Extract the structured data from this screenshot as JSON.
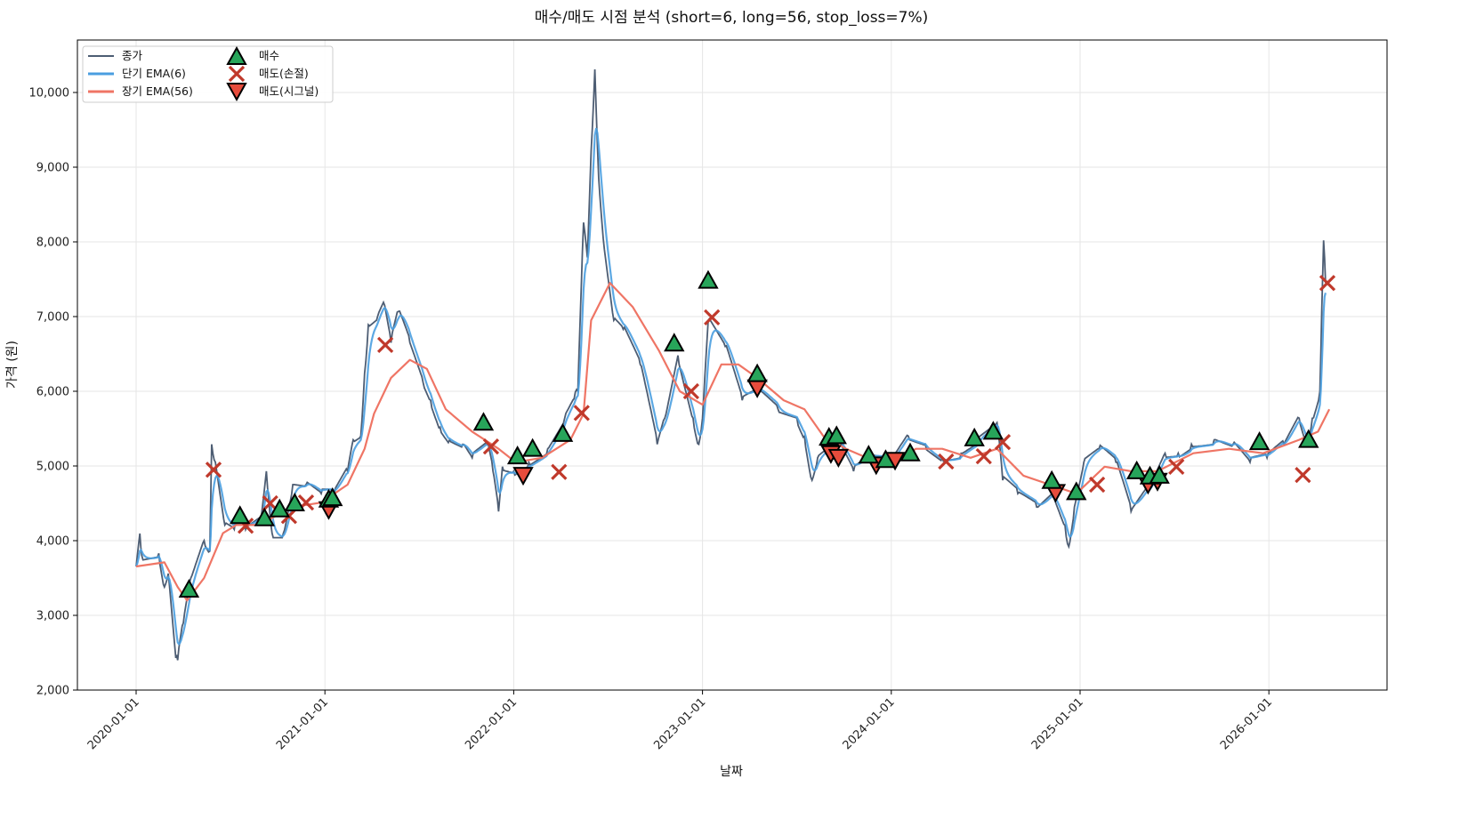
{
  "chart_data": {
    "type": "line",
    "title": "매수/매도 시점 분석 (short=6, long=56, stop_loss=7%)",
    "xlabel": "날짜",
    "ylabel": "가격 (원)",
    "ylim": [
      2000,
      10700
    ],
    "xlim": [
      2019.69,
      2026.63
    ],
    "grid": true,
    "legend_position": "top-left",
    "yticks": [
      2000,
      3000,
      4000,
      5000,
      6000,
      7000,
      8000,
      9000,
      10000
    ],
    "ytick_labels": [
      "2,000",
      "3,000",
      "4,000",
      "5,000",
      "6,000",
      "7,000",
      "8,000",
      "9,000",
      "10,000"
    ],
    "xticks": [
      2020,
      2021,
      2022,
      2023,
      2024,
      2025,
      2026
    ],
    "xtick_labels": [
      "2020-01-01",
      "2021-01-01",
      "2022-01-01",
      "2023-01-01",
      "2024-01-01",
      "2025-01-01",
      "2026-01-01"
    ],
    "legend": [
      "종가",
      "단기 EMA(6)",
      "장기 EMA(56)",
      "매수",
      "매도(손절)",
      "매도(시그널)"
    ],
    "colors": {
      "close": "#4d5d73",
      "short": "#4a9ee0",
      "long": "#ef7565",
      "buy": "#27a55a",
      "stop": "#c0392b",
      "signal": "#e74c3c"
    },
    "short_ema_period": 6,
    "close": [
      [
        2020.0,
        3655
      ],
      [
        2020.02,
        4095
      ],
      [
        2020.03,
        3800
      ],
      [
        2020.12,
        3830
      ],
      [
        2020.15,
        3380
      ],
      [
        2020.17,
        3560
      ],
      [
        2020.21,
        2430
      ],
      [
        2020.22,
        2400
      ],
      [
        2020.25,
        2900
      ],
      [
        2020.29,
        3500
      ],
      [
        2020.36,
        4000
      ],
      [
        2020.39,
        3860
      ],
      [
        2020.4,
        5290
      ],
      [
        2020.42,
        5050
      ],
      [
        2020.47,
        4210
      ],
      [
        2020.52,
        4150
      ],
      [
        2020.55,
        4390
      ],
      [
        2020.58,
        4150
      ],
      [
        2020.66,
        4270
      ],
      [
        2020.69,
        4930
      ],
      [
        2020.72,
        4100
      ],
      [
        2020.78,
        4100
      ],
      [
        2020.83,
        4750
      ],
      [
        2020.9,
        4750
      ],
      [
        2020.98,
        4630
      ],
      [
        2021.05,
        4630
      ],
      [
        2021.12,
        4930
      ],
      [
        2021.15,
        5350
      ],
      [
        2021.19,
        5400
      ],
      [
        2021.21,
        6240
      ],
      [
        2021.23,
        6890
      ],
      [
        2021.28,
        7010
      ],
      [
        2021.31,
        7190
      ],
      [
        2021.35,
        6650
      ],
      [
        2021.39,
        7070
      ],
      [
        2021.45,
        6650
      ],
      [
        2021.52,
        6120
      ],
      [
        2021.56,
        5880
      ],
      [
        2021.61,
        5520
      ],
      [
        2021.66,
        5350
      ],
      [
        2021.73,
        5290
      ],
      [
        2021.78,
        5110
      ],
      [
        2021.86,
        5290
      ],
      [
        2021.89,
        4930
      ],
      [
        2021.92,
        4390
      ],
      [
        2021.94,
        4990
      ],
      [
        2022.0,
        4930
      ],
      [
        2022.08,
        5050
      ],
      [
        2022.18,
        5230
      ],
      [
        2022.27,
        5640
      ],
      [
        2022.32,
        5900
      ],
      [
        2022.34,
        6000
      ],
      [
        2022.37,
        8260
      ],
      [
        2022.39,
        7790
      ],
      [
        2022.41,
        9210
      ],
      [
        2022.43,
        10310
      ],
      [
        2022.45,
        8860
      ],
      [
        2022.48,
        7900
      ],
      [
        2022.53,
        6950
      ],
      [
        2022.58,
        6830
      ],
      [
        2022.67,
        6360
      ],
      [
        2022.76,
        5290
      ],
      [
        2022.8,
        5640
      ],
      [
        2022.87,
        6480
      ],
      [
        2022.95,
        5640
      ],
      [
        2022.98,
        5290
      ],
      [
        2023.0,
        5640
      ],
      [
        2023.03,
        6950
      ],
      [
        2023.12,
        6600
      ],
      [
        2023.21,
        5880
      ],
      [
        2023.31,
        6000
      ],
      [
        2023.4,
        5760
      ],
      [
        2023.5,
        5640
      ],
      [
        2023.54,
        5400
      ],
      [
        2023.58,
        4810
      ],
      [
        2023.61,
        5110
      ],
      [
        2023.71,
        5350
      ],
      [
        2023.8,
        4930
      ],
      [
        2023.9,
        5110
      ],
      [
        2023.99,
        5050
      ],
      [
        2024.09,
        5400
      ],
      [
        2024.18,
        5290
      ],
      [
        2024.27,
        5110
      ],
      [
        2024.37,
        5170
      ],
      [
        2024.46,
        5350
      ],
      [
        2024.56,
        5580
      ],
      [
        2024.59,
        4810
      ],
      [
        2024.67,
        4630
      ],
      [
        2024.77,
        4450
      ],
      [
        2024.86,
        4630
      ],
      [
        2024.92,
        4210
      ],
      [
        2024.94,
        3920
      ],
      [
        2024.97,
        4450
      ],
      [
        2025.02,
        5050
      ],
      [
        2025.1,
        5230
      ],
      [
        2025.19,
        5050
      ],
      [
        2025.27,
        4390
      ],
      [
        2025.36,
        4690
      ],
      [
        2025.45,
        5170
      ],
      [
        2025.52,
        5170
      ],
      [
        2025.59,
        5290
      ],
      [
        2025.71,
        5350
      ],
      [
        2025.81,
        5290
      ],
      [
        2025.9,
        5050
      ],
      [
        2025.99,
        5110
      ],
      [
        2026.08,
        5290
      ],
      [
        2026.16,
        5640
      ],
      [
        2026.2,
        5290
      ],
      [
        2026.23,
        5640
      ],
      [
        2026.27,
        6000
      ],
      [
        2026.28,
        7070
      ],
      [
        2026.29,
        8020
      ],
      [
        2026.3,
        7450
      ]
    ],
    "long_ema": [
      [
        2020.0,
        3655
      ],
      [
        2020.15,
        3710
      ],
      [
        2020.22,
        3380
      ],
      [
        2020.27,
        3200
      ],
      [
        2020.36,
        3500
      ],
      [
        2020.46,
        4100
      ],
      [
        2020.53,
        4210
      ],
      [
        2020.65,
        4210
      ],
      [
        2020.83,
        4450
      ],
      [
        2020.98,
        4510
      ],
      [
        2021.12,
        4750
      ],
      [
        2021.21,
        5230
      ],
      [
        2021.26,
        5700
      ],
      [
        2021.35,
        6180
      ],
      [
        2021.45,
        6420
      ],
      [
        2021.54,
        6300
      ],
      [
        2021.64,
        5760
      ],
      [
        2021.78,
        5460
      ],
      [
        2021.92,
        5230
      ],
      [
        2022.01,
        5050
      ],
      [
        2022.15,
        5110
      ],
      [
        2022.3,
        5350
      ],
      [
        2022.37,
        5700
      ],
      [
        2022.41,
        6950
      ],
      [
        2022.51,
        7450
      ],
      [
        2022.63,
        7130
      ],
      [
        2022.77,
        6540
      ],
      [
        2022.88,
        6000
      ],
      [
        2023.0,
        5820
      ],
      [
        2023.1,
        6360
      ],
      [
        2023.19,
        6360
      ],
      [
        2023.29,
        6180
      ],
      [
        2023.43,
        5880
      ],
      [
        2023.54,
        5760
      ],
      [
        2023.64,
        5400
      ],
      [
        2023.76,
        5230
      ],
      [
        2023.87,
        5110
      ],
      [
        2023.99,
        4990
      ],
      [
        2024.13,
        5230
      ],
      [
        2024.27,
        5230
      ],
      [
        2024.42,
        5110
      ],
      [
        2024.56,
        5230
      ],
      [
        2024.7,
        4870
      ],
      [
        2024.84,
        4750
      ],
      [
        2024.98,
        4630
      ],
      [
        2025.13,
        4990
      ],
      [
        2025.27,
        4930
      ],
      [
        2025.41,
        4930
      ],
      [
        2025.6,
        5170
      ],
      [
        2025.79,
        5230
      ],
      [
        2025.97,
        5170
      ],
      [
        2026.16,
        5350
      ],
      [
        2026.26,
        5460
      ],
      [
        2026.32,
        5760
      ]
    ],
    "buy": [
      [
        2020.28,
        3345
      ],
      [
        2020.55,
        4330
      ],
      [
        2020.68,
        4300
      ],
      [
        2020.76,
        4420
      ],
      [
        2020.84,
        4500
      ],
      [
        2021.02,
        4550
      ],
      [
        2021.04,
        4570
      ],
      [
        2021.84,
        5580
      ],
      [
        2022.02,
        5130
      ],
      [
        2022.1,
        5230
      ],
      [
        2022.26,
        5430
      ],
      [
        2022.85,
        6640
      ],
      [
        2023.03,
        7480
      ],
      [
        2023.29,
        6230
      ],
      [
        2023.67,
        5380
      ],
      [
        2023.71,
        5400
      ],
      [
        2023.88,
        5140
      ],
      [
        2023.97,
        5080
      ],
      [
        2024.1,
        5170
      ],
      [
        2024.44,
        5370
      ],
      [
        2024.54,
        5460
      ],
      [
        2024.85,
        4800
      ],
      [
        2024.98,
        4650
      ],
      [
        2025.3,
        4930
      ],
      [
        2025.37,
        4860
      ],
      [
        2025.42,
        4870
      ],
      [
        2025.95,
        5320
      ],
      [
        2026.21,
        5350
      ]
    ],
    "sell_stop": [
      [
        2020.41,
        4950
      ],
      [
        2020.58,
        4200
      ],
      [
        2020.71,
        4500
      ],
      [
        2020.81,
        4330
      ],
      [
        2020.9,
        4510
      ],
      [
        2021.32,
        6620
      ],
      [
        2021.88,
        5260
      ],
      [
        2022.24,
        4920
      ],
      [
        2022.36,
        5710
      ],
      [
        2022.94,
        6000
      ],
      [
        2023.05,
        6990
      ],
      [
        2024.29,
        5060
      ],
      [
        2024.49,
        5130
      ],
      [
        2024.59,
        5320
      ],
      [
        2025.09,
        4750
      ],
      [
        2025.51,
        4990
      ],
      [
        2026.18,
        4880
      ],
      [
        2026.31,
        7450
      ]
    ],
    "sell_signal": [
      [
        2021.02,
        4420
      ],
      [
        2022.05,
        4880
      ],
      [
        2023.29,
        6050
      ],
      [
        2023.68,
        5170
      ],
      [
        2023.72,
        5120
      ],
      [
        2023.92,
        5020
      ],
      [
        2024.02,
        5080
      ],
      [
        2024.87,
        4650
      ],
      [
        2025.36,
        4760
      ],
      [
        2025.41,
        4800
      ]
    ]
  }
}
